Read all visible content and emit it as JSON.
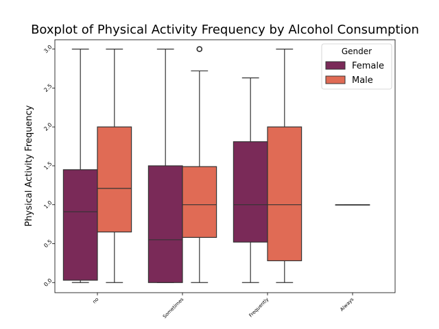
{
  "chart_data": {
    "type": "boxplot",
    "title": "Boxplot of Physical Activity Frequency by Alcohol Consumption",
    "xlabel": "",
    "ylabel": "Physical Activity Frequency",
    "categories": [
      "no",
      "Sometimes",
      "Frequently",
      "Always"
    ],
    "yticks": [
      "0.0",
      "0.5",
      "1.0",
      "1.5",
      "2.0",
      "2.5",
      "3.0"
    ],
    "ylim": [
      -0.13,
      3.12
    ],
    "grid": false,
    "legend": {
      "title": "Gender",
      "position": "top-right",
      "entries": [
        "Female",
        "Male"
      ]
    },
    "series": [
      {
        "name": "Female",
        "color": "#7a2a58",
        "boxes": [
          {
            "category": "no",
            "whisker_low": 0.0,
            "q1": 0.03,
            "median": 0.91,
            "q3": 1.45,
            "whisker_high": 3.0,
            "outliers": []
          },
          {
            "category": "Sometimes",
            "whisker_low": 0.0,
            "q1": 0.0,
            "median": 0.55,
            "q3": 1.5,
            "whisker_high": 3.0,
            "outliers": []
          },
          {
            "category": "Frequently",
            "whisker_low": 0.0,
            "q1": 0.52,
            "median": 1.0,
            "q3": 1.81,
            "whisker_high": 2.63,
            "outliers": []
          }
        ]
      },
      {
        "name": "Male",
        "color": "#e06b55",
        "boxes": [
          {
            "category": "no",
            "whisker_low": 0.0,
            "q1": 0.65,
            "median": 1.21,
            "q3": 2.0,
            "whisker_high": 3.0,
            "outliers": []
          },
          {
            "category": "Sometimes",
            "whisker_low": 0.0,
            "q1": 0.58,
            "median": 1.0,
            "q3": 1.49,
            "whisker_high": 2.72,
            "outliers": [
              3.0,
              3.0
            ]
          },
          {
            "category": "Frequently",
            "whisker_low": 0.0,
            "q1": 0.28,
            "median": 1.0,
            "q3": 2.0,
            "whisker_high": 3.0,
            "outliers": []
          },
          {
            "category": "Always",
            "whisker_low": 1.0,
            "q1": 1.0,
            "median": 1.0,
            "q3": 1.0,
            "whisker_high": 1.0,
            "outliers": []
          }
        ]
      }
    ]
  }
}
